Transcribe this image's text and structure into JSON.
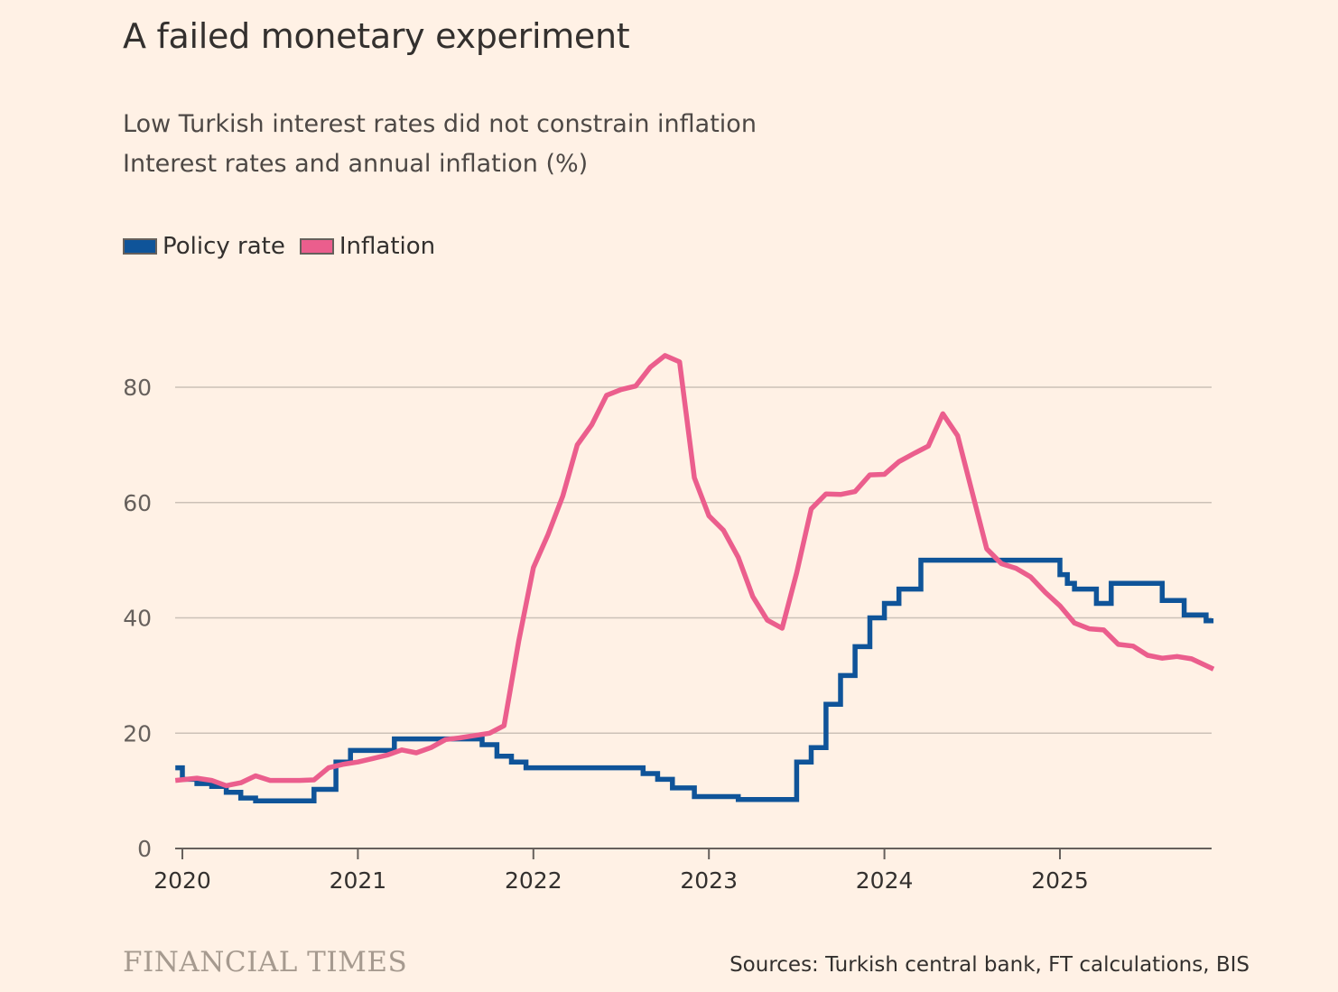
{
  "title": "A failed monetary experiment",
  "subtitle_line1": "Low Turkish interest rates did not constrain inflation",
  "subtitle_line2": "Interest rates and annual inflation (%)",
  "legend": [
    {
      "label": "Policy rate",
      "color": "#0F5499"
    },
    {
      "label": "Inflation",
      "color": "#EB5E8D"
    }
  ],
  "footer": {
    "brand": "FINANCIAL TIMES",
    "source": "Sources: Turkish central bank, FT calculations, BIS"
  },
  "chart_data": {
    "type": "line",
    "title": "A failed monetary experiment",
    "ylabel": "Interest rates and annual inflation (%)",
    "ylim": [
      0,
      80
    ],
    "xlim": [
      2020.0,
      2025.875
    ],
    "yticks": [
      0,
      20,
      40,
      60,
      80
    ],
    "xticks": [
      2020,
      2021,
      2022,
      2023,
      2024,
      2025
    ],
    "grid": true,
    "legend_position": "top-left",
    "series": [
      {
        "name": "Policy rate",
        "color": "#0F5499",
        "step": true,
        "points": [
          [
            2019.96,
            14.0
          ],
          [
            2020.0,
            12.0
          ],
          [
            2020.083,
            11.25
          ],
          [
            2020.167,
            10.75
          ],
          [
            2020.25,
            9.75
          ],
          [
            2020.333,
            8.75
          ],
          [
            2020.417,
            8.25
          ],
          [
            2020.5,
            8.25
          ],
          [
            2020.583,
            8.25
          ],
          [
            2020.667,
            8.25
          ],
          [
            2020.75,
            10.25
          ],
          [
            2020.833,
            10.25
          ],
          [
            2020.875,
            15.0
          ],
          [
            2020.917,
            15.0
          ],
          [
            2020.958,
            17.0
          ],
          [
            2021.083,
            17.0
          ],
          [
            2021.208,
            19.0
          ],
          [
            2021.5,
            19.0
          ],
          [
            2021.667,
            19.0
          ],
          [
            2021.708,
            18.0
          ],
          [
            2021.792,
            16.0
          ],
          [
            2021.875,
            15.0
          ],
          [
            2021.958,
            14.0
          ],
          [
            2022.583,
            14.0
          ],
          [
            2022.625,
            13.0
          ],
          [
            2022.708,
            12.0
          ],
          [
            2022.792,
            10.5
          ],
          [
            2022.917,
            9.0
          ],
          [
            2023.125,
            9.0
          ],
          [
            2023.167,
            8.5
          ],
          [
            2023.458,
            8.5
          ],
          [
            2023.5,
            15.0
          ],
          [
            2023.542,
            15.0
          ],
          [
            2023.583,
            17.5
          ],
          [
            2023.667,
            25.0
          ],
          [
            2023.75,
            30.0
          ],
          [
            2023.833,
            35.0
          ],
          [
            2023.917,
            40.0
          ],
          [
            2024.0,
            42.5
          ],
          [
            2024.083,
            45.0
          ],
          [
            2024.208,
            50.0
          ],
          [
            2024.958,
            50.0
          ],
          [
            2025.0,
            47.5
          ],
          [
            2025.042,
            46.0
          ],
          [
            2025.083,
            45.0
          ],
          [
            2025.208,
            42.5
          ],
          [
            2025.292,
            46.0
          ],
          [
            2025.542,
            46.0
          ],
          [
            2025.583,
            43.0
          ],
          [
            2025.708,
            40.5
          ],
          [
            2025.833,
            39.5
          ],
          [
            2025.875,
            39.5
          ]
        ]
      },
      {
        "name": "Inflation",
        "color": "#EB5E8D",
        "step": false,
        "points": [
          [
            2019.96,
            11.8
          ],
          [
            2020.083,
            12.2
          ],
          [
            2020.167,
            11.8
          ],
          [
            2020.25,
            10.9
          ],
          [
            2020.333,
            11.4
          ],
          [
            2020.417,
            12.6
          ],
          [
            2020.5,
            11.8
          ],
          [
            2020.583,
            11.8
          ],
          [
            2020.667,
            11.8
          ],
          [
            2020.75,
            11.9
          ],
          [
            2020.833,
            14.0
          ],
          [
            2020.917,
            14.6
          ],
          [
            2021.0,
            15.0
          ],
          [
            2021.083,
            15.6
          ],
          [
            2021.167,
            16.2
          ],
          [
            2021.25,
            17.1
          ],
          [
            2021.333,
            16.6
          ],
          [
            2021.417,
            17.5
          ],
          [
            2021.5,
            18.9
          ],
          [
            2021.583,
            19.2
          ],
          [
            2021.667,
            19.6
          ],
          [
            2021.75,
            20.0
          ],
          [
            2021.833,
            21.3
          ],
          [
            2021.917,
            36.1
          ],
          [
            2022.0,
            48.7
          ],
          [
            2022.083,
            54.4
          ],
          [
            2022.167,
            61.1
          ],
          [
            2022.25,
            70.0
          ],
          [
            2022.333,
            73.5
          ],
          [
            2022.417,
            78.6
          ],
          [
            2022.5,
            79.6
          ],
          [
            2022.583,
            80.2
          ],
          [
            2022.667,
            83.5
          ],
          [
            2022.75,
            85.5
          ],
          [
            2022.833,
            84.4
          ],
          [
            2022.917,
            64.3
          ],
          [
            2023.0,
            57.7
          ],
          [
            2023.083,
            55.2
          ],
          [
            2023.167,
            50.5
          ],
          [
            2023.25,
            43.7
          ],
          [
            2023.333,
            39.6
          ],
          [
            2023.417,
            38.2
          ],
          [
            2023.5,
            47.8
          ],
          [
            2023.583,
            58.9
          ],
          [
            2023.667,
            61.5
          ],
          [
            2023.75,
            61.4
          ],
          [
            2023.833,
            61.9
          ],
          [
            2023.917,
            64.8
          ],
          [
            2024.0,
            64.9
          ],
          [
            2024.083,
            67.1
          ],
          [
            2024.167,
            68.5
          ],
          [
            2024.25,
            69.8
          ],
          [
            2024.333,
            75.4
          ],
          [
            2024.417,
            71.6
          ],
          [
            2024.5,
            61.8
          ],
          [
            2024.583,
            51.97
          ],
          [
            2024.667,
            49.4
          ],
          [
            2024.75,
            48.6
          ],
          [
            2024.833,
            47.1
          ],
          [
            2024.917,
            44.4
          ],
          [
            2025.0,
            42.1
          ],
          [
            2025.083,
            39.1
          ],
          [
            2025.167,
            38.1
          ],
          [
            2025.25,
            37.9
          ],
          [
            2025.333,
            35.4
          ],
          [
            2025.417,
            35.1
          ],
          [
            2025.5,
            33.5
          ],
          [
            2025.583,
            33.0
          ],
          [
            2025.667,
            33.3
          ],
          [
            2025.75,
            32.9
          ],
          [
            2025.875,
            31.1
          ]
        ]
      }
    ]
  }
}
